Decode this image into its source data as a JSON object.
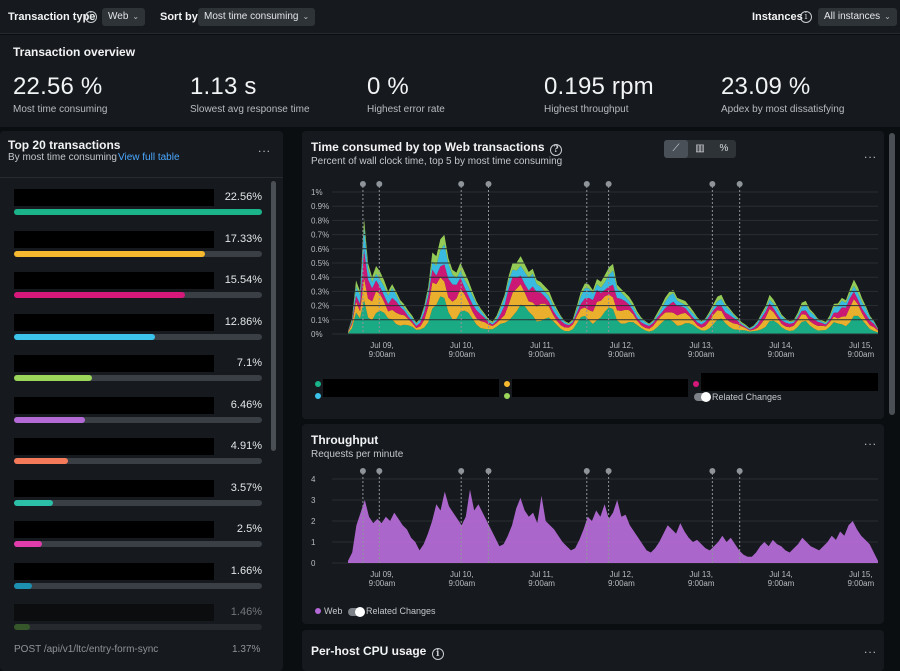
{
  "topbar": {
    "transaction_type_label": "Transaction type",
    "transaction_type_value": "Web",
    "sort_by_label": "Sort by",
    "sort_by_value": "Most time consuming",
    "instances_label": "Instances",
    "instances_value": "All instances"
  },
  "overview": {
    "title": "Transaction overview",
    "metrics": [
      {
        "value": "22.56 %",
        "label": "Most time consuming"
      },
      {
        "value": "1.13 s",
        "label": "Slowest avg response time"
      },
      {
        "value": "0 %",
        "label": "Highest error rate"
      },
      {
        "value": "0.195 rpm",
        "label": "Highest throughput"
      },
      {
        "value": "23.09 %",
        "label": "Apdex by most dissatisfying"
      }
    ]
  },
  "top_transactions": {
    "title": "Top 20 transactions",
    "subtitle": "By most time consuming",
    "link": "View full table",
    "menu": "...",
    "items": [
      {
        "pct": "22.56%",
        "fraction": 1.0,
        "color": "#1bb38a"
      },
      {
        "pct": "17.33%",
        "fraction": 0.77,
        "color": "#f5b82e"
      },
      {
        "pct": "15.54%",
        "fraction": 0.69,
        "color": "#d6187a"
      },
      {
        "pct": "12.86%",
        "fraction": 0.57,
        "color": "#3bc3ec"
      },
      {
        "pct": "7.1%",
        "fraction": 0.315,
        "color": "#9bd55a"
      },
      {
        "pct": "6.46%",
        "fraction": 0.286,
        "color": "#b36ad6"
      },
      {
        "pct": "4.91%",
        "fraction": 0.218,
        "color": "#f47a5a"
      },
      {
        "pct": "3.57%",
        "fraction": 0.158,
        "color": "#2bbfa8"
      },
      {
        "pct": "2.5%",
        "fraction": 0.111,
        "color": "#e03cab"
      },
      {
        "pct": "1.66%",
        "fraction": 0.074,
        "color": "#1d8fb0"
      },
      {
        "pct": "1.46%",
        "fraction": 0.065,
        "color": "#5ea23a"
      }
    ],
    "last_item_name": "POST /api/v1/ltc/entry-form-sync",
    "last_item_pct": "1.37%"
  },
  "time_chart": {
    "title": "Time consumed by top Web transactions",
    "subtitle": "Percent of wall clock time, top 5 by most time consuming",
    "menu": "...",
    "view_buttons": [
      "area-chart-icon",
      "bar-chart-icon",
      "percent-icon"
    ],
    "related_changes": "Related Changes"
  },
  "throughput_chart": {
    "title": "Throughput",
    "subtitle": "Requests per minute",
    "menu": "...",
    "legend_web": "Web",
    "related_changes": "Related Changes"
  },
  "cpu_panel": {
    "title": "Per-host CPU usage",
    "menu": "..."
  },
  "chart_data": [
    {
      "type": "area",
      "title": "Time consumed by top Web transactions",
      "subtitle": "Percent of wall clock time, top 5 by most time consuming",
      "x_ticks": [
        "Jul 09,\n9:00am",
        "Jul 10,\n9:00am",
        "Jul 11,\n9:00am",
        "Jul 12,\n9:00am",
        "Jul 13,\n9:00am",
        "Jul 14,\n9:00am",
        "Jul 15,\n9:00am"
      ],
      "y_ticks": [
        "1%",
        "0.9%",
        "0.8%",
        "0.7%",
        "0.6%",
        "0.5%",
        "0.4%",
        "0.3%",
        "0.2%",
        "0.1%",
        "0%"
      ],
      "ylim": [
        0,
        1
      ],
      "stacked": true,
      "series_colors": [
        "#1bb38a",
        "#f5b82e",
        "#d6187a",
        "#3bc3ec",
        "#9bd55a"
      ],
      "total_profile": [
        0.02,
        0.1,
        0.35,
        0.3,
        0.88,
        0.55,
        0.42,
        0.46,
        0.4,
        0.35,
        0.3,
        0.38,
        0.33,
        0.25,
        0.2,
        0.15,
        0.12,
        0.08,
        0.12,
        0.22,
        0.35,
        0.55,
        0.5,
        0.62,
        0.7,
        0.58,
        0.5,
        0.45,
        0.48,
        0.4,
        0.35,
        0.3,
        0.25,
        0.2,
        0.15,
        0.1,
        0.08,
        0.12,
        0.2,
        0.3,
        0.45,
        0.52,
        0.48,
        0.5,
        0.46,
        0.44,
        0.5,
        0.42,
        0.38,
        0.32,
        0.28,
        0.22,
        0.18,
        0.14,
        0.1,
        0.08,
        0.1,
        0.18,
        0.28,
        0.36,
        0.38,
        0.34,
        0.4,
        0.35,
        0.38,
        0.44,
        0.5,
        0.38,
        0.35,
        0.3,
        0.25,
        0.2,
        0.15,
        0.12,
        0.1,
        0.08,
        0.1,
        0.14,
        0.18,
        0.24,
        0.3,
        0.34,
        0.28,
        0.25,
        0.22,
        0.18,
        0.15,
        0.12,
        0.1,
        0.12,
        0.16,
        0.2,
        0.24,
        0.26,
        0.22,
        0.2,
        0.16,
        0.12,
        0.08,
        0.06,
        0.04,
        0.06,
        0.1,
        0.16,
        0.2,
        0.26,
        0.22,
        0.18,
        0.14,
        0.12,
        0.1,
        0.1,
        0.14,
        0.2,
        0.22,
        0.18,
        0.16,
        0.12,
        0.1,
        0.08,
        0.12,
        0.2,
        0.22,
        0.28,
        0.26,
        0.32,
        0.36,
        0.3,
        0.24,
        0.2,
        0.14,
        0.1,
        0.04
      ],
      "change_markers": [
        0.02,
        0.05,
        0.2,
        0.25,
        0.43,
        0.47,
        0.66,
        0.71
      ]
    },
    {
      "type": "area",
      "title": "Throughput",
      "subtitle": "Requests per minute",
      "x_ticks": [
        "Jul 09,\n9:00am",
        "Jul 10,\n9:00am",
        "Jul 11,\n9:00am",
        "Jul 12,\n9:00am",
        "Jul 13,\n9:00am",
        "Jul 14,\n9:00am",
        "Jul 15,\n9:00am"
      ],
      "y_ticks": [
        "4",
        "3",
        "2",
        "1",
        "0"
      ],
      "ylim": [
        0,
        4
      ],
      "series": [
        {
          "name": "Web",
          "color": "#b36ad6"
        }
      ],
      "values": [
        0.1,
        0.5,
        1.8,
        2.4,
        3.0,
        2.2,
        1.9,
        2.1,
        1.9,
        2.2,
        2.0,
        2.4,
        2.1,
        1.8,
        1.6,
        1.2,
        1.0,
        0.6,
        0.9,
        1.4,
        2.0,
        2.8,
        2.5,
        3.4,
        2.7,
        2.4,
        2.1,
        1.8,
        2.2,
        3.5,
        2.5,
        2.8,
        2.4,
        2.0,
        1.6,
        1.2,
        0.8,
        0.9,
        1.3,
        1.8,
        2.6,
        3.1,
        2.5,
        2.2,
        2.4,
        1.9,
        3.2,
        2.0,
        1.8,
        1.6,
        1.3,
        1.0,
        0.8,
        0.6,
        0.7,
        1.1,
        1.6,
        2.2,
        2.0,
        2.5,
        2.2,
        2.8,
        2.1,
        2.4,
        3.0,
        2.2,
        2.3,
        1.8,
        1.5,
        1.2,
        0.9,
        0.6,
        0.5,
        0.7,
        1.0,
        1.4,
        1.8,
        1.6,
        1.4,
        1.9,
        1.5,
        1.2,
        1.0,
        1.1,
        0.9,
        0.7,
        0.6,
        0.8,
        1.0,
        1.3,
        1.0,
        1.2,
        0.9,
        0.6,
        0.4,
        0.3,
        0.3,
        0.5,
        0.8,
        1.0,
        0.8,
        1.1,
        0.9,
        0.8,
        0.6,
        0.5,
        0.7,
        0.9,
        1.2,
        1.0,
        0.8,
        0.7,
        0.6,
        0.8,
        1.0,
        1.3,
        1.1,
        1.5,
        1.3,
        1.8,
        2.0,
        1.6,
        1.3,
        1.1,
        0.9,
        0.5,
        0.1
      ],
      "change_markers": [
        0.02,
        0.05,
        0.2,
        0.25,
        0.43,
        0.47,
        0.66,
        0.71
      ]
    }
  ]
}
